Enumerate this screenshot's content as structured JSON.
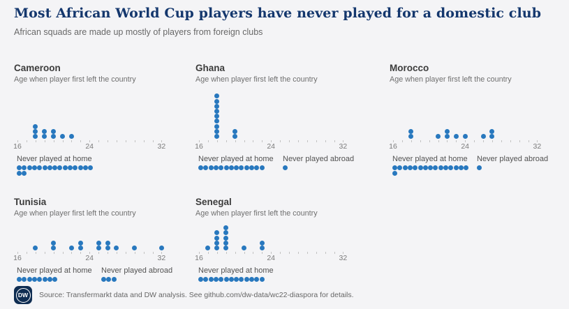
{
  "header": {
    "title": "Most African World Cup players have never played for a domestic club",
    "subtitle": "African squads are made up mostly of players from foreign clubs"
  },
  "labels": {
    "age_axis": "Age when player first left the country",
    "never_home": "Never played at home",
    "never_abroad": "Never played abroad"
  },
  "colors": {
    "dot_blue": "#2878be",
    "title_navy": "#14376d",
    "background": "#f4f4f6"
  },
  "axis": {
    "min": 16,
    "max": 32,
    "tick_every": 1,
    "labeled_ticks": [
      16,
      24,
      32
    ]
  },
  "chart_data": [
    {
      "type": "scatter",
      "title": "Cameroon",
      "xlabel": "Age when player first left the country",
      "xlim": [
        16,
        32
      ],
      "x": [
        18,
        18,
        18,
        19,
        19,
        20,
        20,
        21,
        22
      ],
      "never_played_at_home": 17,
      "never_played_abroad": null
    },
    {
      "type": "scatter",
      "title": "Ghana",
      "xlabel": "Age when player first left the country",
      "xlim": [
        16,
        32
      ],
      "x": [
        18,
        18,
        18,
        18,
        18,
        18,
        18,
        18,
        18,
        20,
        20
      ],
      "never_played_at_home": 13,
      "never_played_abroad": 1
    },
    {
      "type": "scatter",
      "title": "Morocco",
      "xlabel": "Age when player first left the country",
      "xlim": [
        16,
        32
      ],
      "x": [
        18,
        18,
        21,
        22,
        22,
        23,
        24,
        26,
        27,
        27
      ],
      "never_played_at_home": 16,
      "never_played_abroad": 1
    },
    {
      "type": "scatter",
      "title": "Tunisia",
      "xlabel": "Age when player first left the country",
      "xlim": [
        16,
        32
      ],
      "x": [
        18,
        20,
        20,
        22,
        23,
        23,
        25,
        25,
        26,
        26,
        27,
        29,
        32
      ],
      "never_played_at_home": 8,
      "never_played_abroad": 3
    },
    {
      "type": "scatter",
      "title": "Senegal",
      "xlabel": "Age when player first left the country",
      "xlim": [
        16,
        32
      ],
      "x": [
        17,
        18,
        18,
        18,
        18,
        19,
        19,
        19,
        19,
        19,
        21,
        23,
        23
      ],
      "never_played_at_home": 13,
      "never_played_abroad": null
    }
  ],
  "footer": {
    "logo": "DW",
    "source": "Source: Transfermarkt data and DW analysis. See github.com/dw-data/wc22-diaspora for details."
  }
}
